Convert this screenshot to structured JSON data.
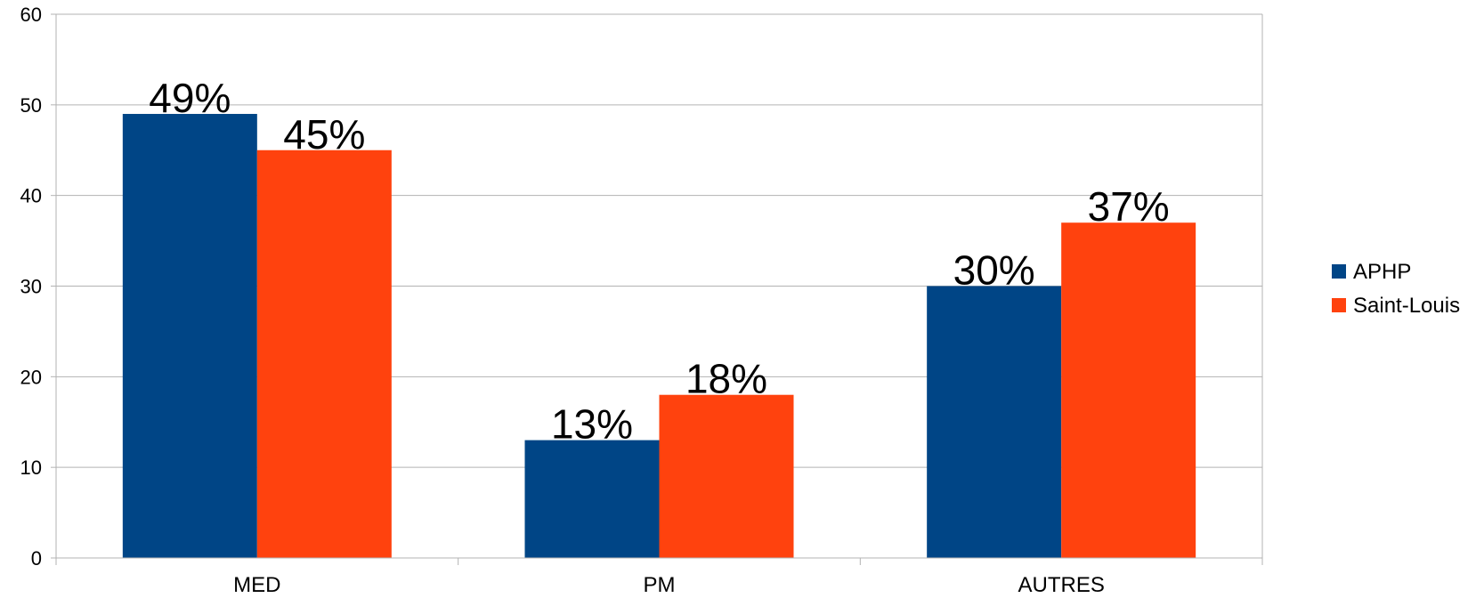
{
  "chart_data": {
    "type": "bar",
    "categories": [
      "MED",
      "PM",
      "AUTRES"
    ],
    "series": [
      {
        "name": "APHP",
        "values": [
          49,
          13,
          30
        ],
        "labels": [
          "49%",
          "13%",
          "30%"
        ],
        "color": "#004586"
      },
      {
        "name": "Saint-Louis",
        "values": [
          45,
          18,
          37
        ],
        "labels": [
          "45%",
          "18%",
          "37%"
        ],
        "color": "#ff420e"
      }
    ],
    "ylim": [
      0,
      60
    ],
    "yticks": [
      0,
      10,
      20,
      30,
      40,
      50,
      60
    ],
    "grid": true,
    "legend_position": "right",
    "title": "",
    "xlabel": "",
    "ylabel": ""
  }
}
